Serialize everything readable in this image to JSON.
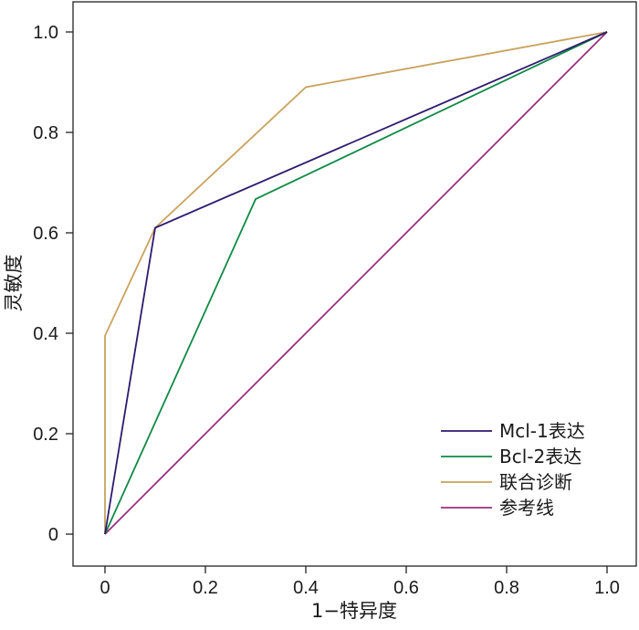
{
  "chart_data": {
    "type": "line",
    "title": "",
    "xlabel": "1−特异度",
    "ylabel": "灵敏度",
    "xlim": [
      0,
      1
    ],
    "ylim": [
      0,
      1
    ],
    "x_ticks": [
      "0",
      "0.2",
      "0.4",
      "0.6",
      "0.8",
      "1.0"
    ],
    "y_ticks": [
      "0",
      "0.2",
      "0.4",
      "0.6",
      "0.8",
      "1.0"
    ],
    "grid": false,
    "legend_position": "bottom-right",
    "series": [
      {
        "name": "Mcl-1表达",
        "color": "#2e1a6e",
        "x": [
          0,
          0.1,
          1.0
        ],
        "y": [
          0,
          0.61,
          1.0
        ]
      },
      {
        "name": "Bcl-2表达",
        "color": "#0f8a44",
        "x": [
          0,
          0.3,
          1.0
        ],
        "y": [
          0,
          0.667,
          1.0
        ]
      },
      {
        "name": "联合诊断",
        "color": "#c9a25e",
        "x": [
          0,
          0,
          0.1,
          0.4,
          1.0
        ],
        "y": [
          0,
          0.395,
          0.61,
          0.89,
          1.0
        ]
      },
      {
        "name": "参考线",
        "color": "#9b2d7f",
        "x": [
          0,
          1.0
        ],
        "y": [
          0,
          1.0
        ]
      }
    ]
  }
}
